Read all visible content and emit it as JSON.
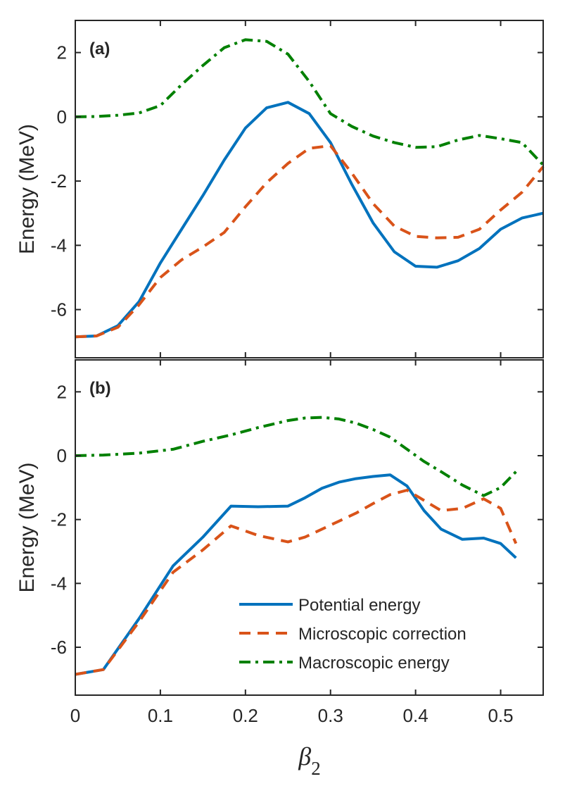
{
  "chart_data": [
    {
      "type": "line",
      "panel_label": "(a)",
      "ylabel": "Energy (MeV)",
      "xlim": [
        0,
        0.55
      ],
      "ylim": [
        -7.5,
        3
      ],
      "xticks": [
        0,
        0.1,
        0.2,
        0.3,
        0.4,
        0.5
      ],
      "yticks": [
        2,
        0,
        -2,
        -4,
        -6
      ],
      "xtick_labels": [
        "0",
        "0.1",
        "0.2",
        "0.3",
        "0.4",
        "0.5"
      ],
      "ytick_labels": [
        "2",
        "0",
        "-2",
        "-4",
        "-6"
      ],
      "grid": false,
      "series": [
        {
          "name": "Potential energy",
          "color": "#0072BD",
          "style": "solid",
          "x": [
            0,
            0.025,
            0.05,
            0.075,
            0.1,
            0.125,
            0.15,
            0.175,
            0.2,
            0.225,
            0.25,
            0.275,
            0.3,
            0.325,
            0.35,
            0.375,
            0.4,
            0.425,
            0.45,
            0.475,
            0.5,
            0.525,
            0.55
          ],
          "values": [
            -6.85,
            -6.82,
            -6.5,
            -5.75,
            -4.55,
            -3.5,
            -2.45,
            -1.35,
            -0.35,
            0.28,
            0.45,
            0.1,
            -0.8,
            -2.1,
            -3.3,
            -4.2,
            -4.65,
            -4.68,
            -4.48,
            -4.1,
            -3.5,
            -3.15,
            -3.0
          ]
        },
        {
          "name": "Microscopic correction",
          "color": "#D95319",
          "style": "dashed",
          "x": [
            0,
            0.025,
            0.05,
            0.075,
            0.1,
            0.125,
            0.15,
            0.175,
            0.2,
            0.225,
            0.25,
            0.275,
            0.3,
            0.325,
            0.35,
            0.375,
            0.4,
            0.425,
            0.45,
            0.475,
            0.5,
            0.525,
            0.55
          ],
          "values": [
            -6.85,
            -6.82,
            -6.55,
            -5.85,
            -5.0,
            -4.45,
            -4.05,
            -3.6,
            -2.8,
            -2.05,
            -1.45,
            -0.98,
            -0.9,
            -1.75,
            -2.7,
            -3.4,
            -3.72,
            -3.77,
            -3.75,
            -3.5,
            -2.9,
            -2.35,
            -1.55
          ]
        },
        {
          "name": "Macroscopic energy",
          "color": "#008000",
          "style": "dashdot",
          "x": [
            0,
            0.025,
            0.05,
            0.075,
            0.1,
            0.125,
            0.15,
            0.175,
            0.2,
            0.225,
            0.25,
            0.275,
            0.3,
            0.325,
            0.35,
            0.375,
            0.4,
            0.425,
            0.45,
            0.475,
            0.5,
            0.525,
            0.55
          ],
          "values": [
            0,
            0.01,
            0.05,
            0.12,
            0.35,
            1.0,
            1.6,
            2.15,
            2.4,
            2.35,
            1.95,
            1.1,
            0.1,
            -0.3,
            -0.6,
            -0.8,
            -0.95,
            -0.93,
            -0.72,
            -0.58,
            -0.68,
            -0.8,
            -1.5
          ]
        }
      ]
    },
    {
      "type": "line",
      "panel_label": "(b)",
      "ylabel": "Energy (MeV)",
      "xlabel_symbol": "β",
      "xlabel_subscript": "2",
      "xlim": [
        0,
        0.55
      ],
      "ylim": [
        -7.5,
        3
      ],
      "xticks": [
        0,
        0.1,
        0.2,
        0.3,
        0.4,
        0.5
      ],
      "yticks": [
        2,
        0,
        -2,
        -4,
        -6
      ],
      "xtick_labels": [
        "0",
        "0.1",
        "0.2",
        "0.3",
        "0.4",
        "0.5"
      ],
      "ytick_labels": [
        "2",
        "0",
        "-2",
        "-4",
        "-6"
      ],
      "grid": false,
      "legend_position": "bottom-right",
      "legend": [
        "Potential energy",
        "Microscopic correction",
        "Macroscopic energy"
      ],
      "series": [
        {
          "name": "Potential energy",
          "color": "#0072BD",
          "style": "solid",
          "x": [
            0,
            0.033,
            0.075,
            0.115,
            0.15,
            0.183,
            0.215,
            0.25,
            0.27,
            0.29,
            0.31,
            0.33,
            0.35,
            0.37,
            0.39,
            0.41,
            0.43,
            0.455,
            0.48,
            0.5,
            0.518
          ],
          "values": [
            -6.85,
            -6.7,
            -5.1,
            -3.45,
            -2.55,
            -1.58,
            -1.6,
            -1.58,
            -1.32,
            -1.02,
            -0.83,
            -0.72,
            -0.65,
            -0.6,
            -0.95,
            -1.72,
            -2.3,
            -2.62,
            -2.58,
            -2.75,
            -3.2
          ]
        },
        {
          "name": "Microscopic correction",
          "color": "#D95319",
          "style": "dashed",
          "x": [
            0,
            0.033,
            0.075,
            0.115,
            0.15,
            0.183,
            0.215,
            0.25,
            0.27,
            0.29,
            0.31,
            0.33,
            0.35,
            0.37,
            0.39,
            0.41,
            0.43,
            0.455,
            0.48,
            0.5,
            0.518
          ],
          "values": [
            -6.85,
            -6.7,
            -5.2,
            -3.65,
            -2.95,
            -2.2,
            -2.5,
            -2.7,
            -2.55,
            -2.3,
            -2.05,
            -1.8,
            -1.5,
            -1.22,
            -1.08,
            -1.4,
            -1.72,
            -1.65,
            -1.35,
            -1.65,
            -2.75
          ]
        },
        {
          "name": "Macroscopic energy",
          "color": "#008000",
          "style": "dashdot",
          "x": [
            0,
            0.033,
            0.075,
            0.115,
            0.15,
            0.183,
            0.215,
            0.25,
            0.27,
            0.29,
            0.31,
            0.33,
            0.35,
            0.37,
            0.39,
            0.41,
            0.43,
            0.455,
            0.48,
            0.5,
            0.518
          ],
          "values": [
            0,
            0.02,
            0.08,
            0.2,
            0.45,
            0.65,
            0.88,
            1.1,
            1.18,
            1.2,
            1.15,
            1.02,
            0.82,
            0.58,
            0.2,
            -0.18,
            -0.5,
            -0.92,
            -1.25,
            -1.0,
            -0.5
          ]
        }
      ]
    }
  ]
}
